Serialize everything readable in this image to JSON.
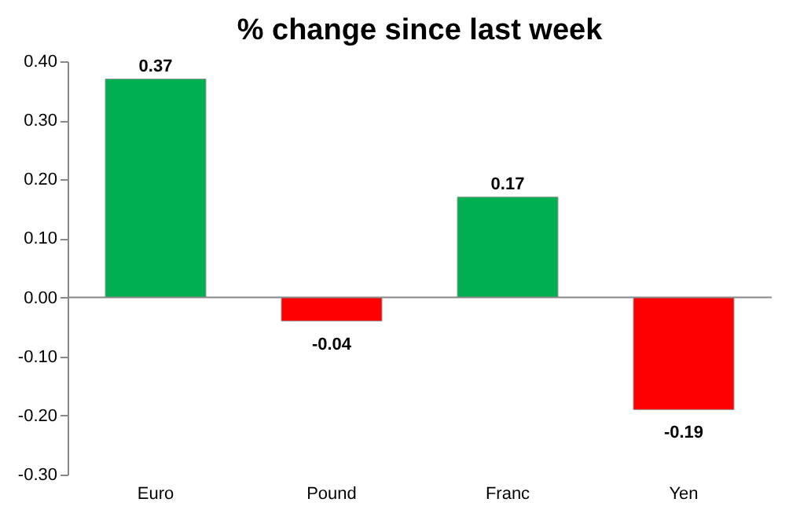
{
  "chart_data": {
    "type": "bar",
    "title": "% change since last week",
    "categories": [
      "Euro",
      "Pound",
      "Franc",
      "Yen"
    ],
    "values": [
      0.37,
      -0.04,
      0.17,
      -0.19
    ],
    "colors": [
      "#00b050",
      "#ff0000",
      "#00b050",
      "#ff0000"
    ],
    "ylim": [
      -0.3,
      0.4
    ],
    "yticks": [
      {
        "value": 0.4,
        "label": "0.40"
      },
      {
        "value": 0.3,
        "label": "0.30"
      },
      {
        "value": 0.2,
        "label": "0.20"
      },
      {
        "value": 0.1,
        "label": "0.10"
      },
      {
        "value": 0,
        "label": "0.00"
      },
      {
        "value": -0.1,
        "label": "-0.10"
      },
      {
        "value": -0.2,
        "label": "-0.20"
      },
      {
        "value": -0.3,
        "label": "-0.30"
      }
    ],
    "data_labels": true
  }
}
